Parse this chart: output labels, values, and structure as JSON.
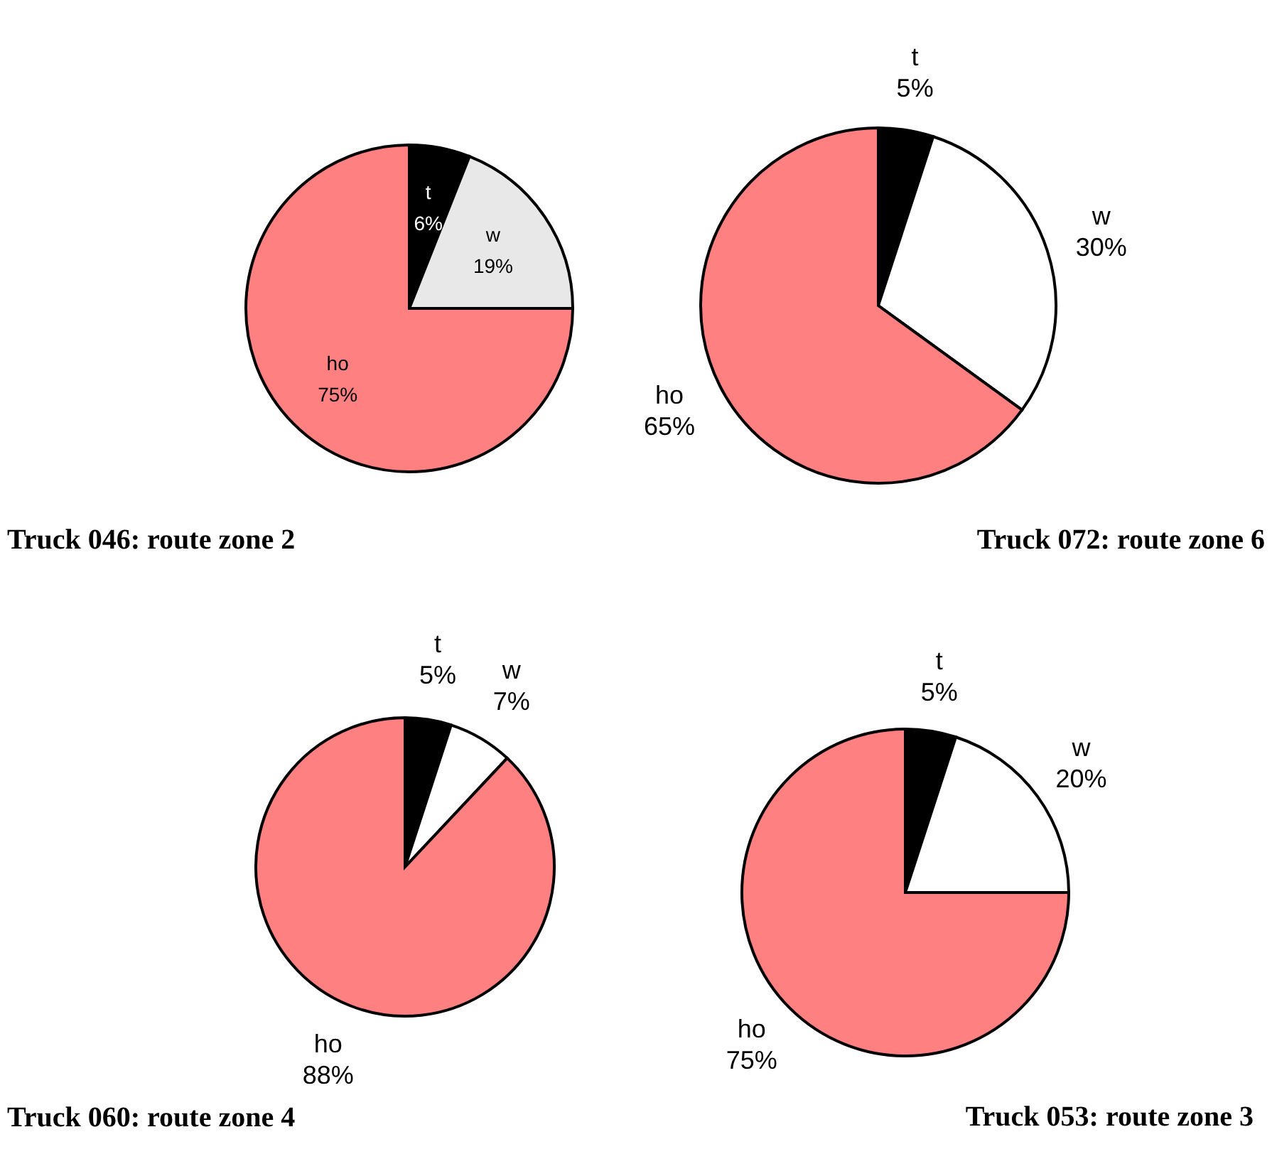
{
  "chart_data": [
    {
      "type": "pie",
      "title": "Truck 046: route zone 2",
      "categories": [
        "t",
        "w",
        "ho"
      ],
      "values": [
        6,
        19,
        75
      ],
      "value_labels": [
        "6%",
        "19%",
        "75%"
      ],
      "colors": [
        "#000000",
        "#e8e8e8",
        "#ff8080"
      ]
    },
    {
      "type": "pie",
      "title": "Truck 072: route zone 6",
      "categories": [
        "t",
        "w",
        "ho"
      ],
      "values": [
        5,
        30,
        65
      ],
      "value_labels": [
        "5%",
        "30%",
        "65%"
      ],
      "colors": [
        "#000000",
        "#ffffff",
        "#ff8080"
      ]
    },
    {
      "type": "pie",
      "title": "Truck 060: route zone 4",
      "categories": [
        "t",
        "w",
        "ho"
      ],
      "values": [
        5,
        7,
        88
      ],
      "value_labels": [
        "5%",
        "7%",
        "88%"
      ],
      "colors": [
        "#000000",
        "#ffffff",
        "#ff8080"
      ]
    },
    {
      "type": "pie",
      "title": "Truck 053: route zone 3",
      "categories": [
        "t",
        "w",
        "ho"
      ],
      "values": [
        5,
        20,
        75
      ],
      "value_labels": [
        "5%",
        "20%",
        "75%"
      ],
      "colors": [
        "#000000",
        "#ffffff",
        "#ff8080"
      ]
    }
  ]
}
